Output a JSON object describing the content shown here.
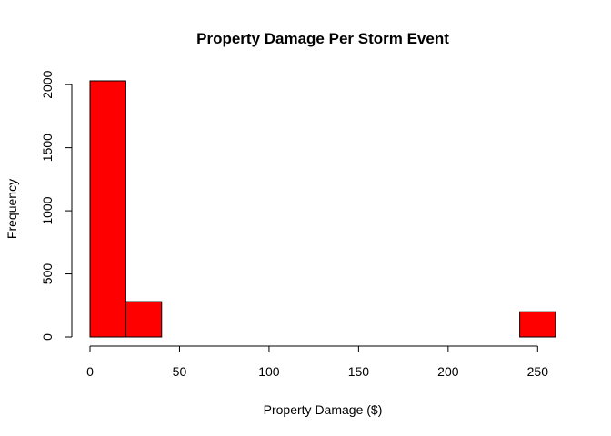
{
  "chart_data": {
    "type": "bar",
    "title": "Property Damage Per Storm Event",
    "xlabel": "Property Damage ($)",
    "ylabel": "Frequency",
    "bins": [
      {
        "x0": 0,
        "x1": 20,
        "count": 2030
      },
      {
        "x0": 20,
        "x1": 40,
        "count": 280
      },
      {
        "x0": 240,
        "x1": 260,
        "count": 200
      }
    ],
    "xticks": [
      0,
      50,
      100,
      150,
      200,
      250
    ],
    "yticks": [
      0,
      500,
      1000,
      1500,
      2000
    ],
    "xlim": [
      0,
      260
    ],
    "ylim": [
      0,
      2030
    ],
    "bar_color": "#ff0000",
    "bar_border": "#000000",
    "grid": false
  }
}
